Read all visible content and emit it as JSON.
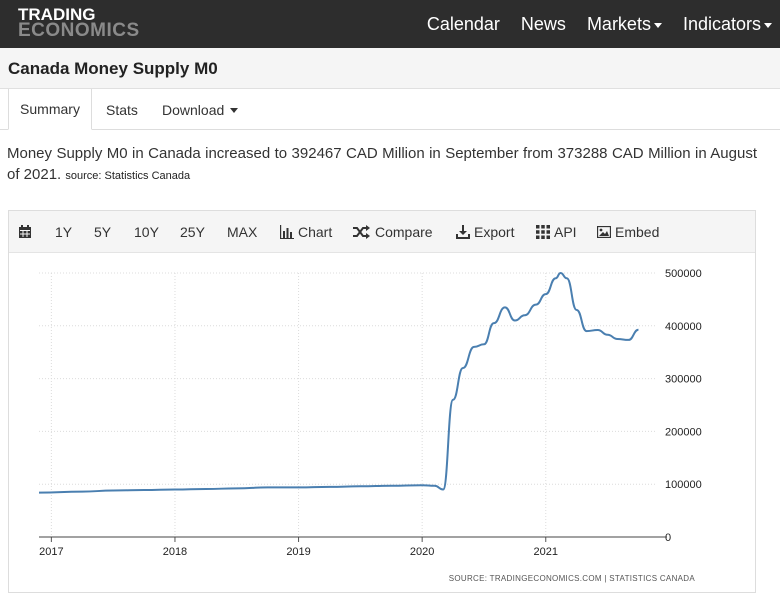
{
  "header": {
    "logo_line1": "TRADING",
    "logo_line2": "ECONOMICS",
    "nav": [
      {
        "label": "Calendar"
      },
      {
        "label": "News"
      },
      {
        "label": "Markets"
      },
      {
        "label": "Indicators"
      }
    ]
  },
  "page": {
    "title": "Canada Money Supply M0"
  },
  "tabs": [
    {
      "label": "Summary"
    },
    {
      "label": "Stats"
    },
    {
      "label": "Download"
    }
  ],
  "description": {
    "text": "Money Supply M0 in Canada increased to 392467 CAD Million in September from 373288 CAD Million in August of 2021.",
    "source": "source: Statistics Canada"
  },
  "toolbar": {
    "ranges": [
      "1Y",
      "5Y",
      "10Y",
      "25Y",
      "MAX"
    ],
    "chart": "Chart",
    "compare": "Compare",
    "export": "Export",
    "api": "API",
    "embed": "Embed"
  },
  "chart_data": {
    "type": "line",
    "title": "",
    "xlabel": "",
    "ylabel": "",
    "x_ticks": [
      "2017",
      "2018",
      "2019",
      "2020",
      "2021"
    ],
    "y_ticks": [
      0,
      100000,
      200000,
      300000,
      400000,
      500000
    ],
    "ylim": [
      0,
      500000
    ],
    "xlim": [
      2016.9,
      2021.9
    ],
    "grid": true,
    "y_axis_side": "right",
    "source": "SOURCE: TRADINGECONOMICS.COM  |  STATISTICS CANADA",
    "line_color": "#4a7fb0",
    "series": [
      {
        "x": [
          2016.9,
          2017.25,
          2017.5,
          2017.75,
          2018.0,
          2018.25,
          2018.5,
          2018.75,
          2019.0,
          2019.25,
          2019.5,
          2019.75,
          2020.0,
          2020.1,
          2020.17,
          2020.25,
          2020.33,
          2020.42,
          2020.5,
          2020.58,
          2020.67,
          2020.75,
          2020.83,
          2020.92,
          2021.0,
          2021.08,
          2021.12,
          2021.17,
          2021.25,
          2021.33,
          2021.42,
          2021.5,
          2021.58,
          2021.67,
          2021.75
        ],
        "values": [
          84000,
          86000,
          88000,
          89000,
          90000,
          91000,
          92000,
          94000,
          94000,
          95000,
          96000,
          97000,
          98000,
          97000,
          90000,
          260000,
          320000,
          360000,
          365000,
          405000,
          435000,
          410000,
          420000,
          440000,
          460000,
          490000,
          500000,
          490000,
          430000,
          390000,
          392000,
          383000,
          375000,
          373288,
          392467
        ]
      }
    ]
  }
}
